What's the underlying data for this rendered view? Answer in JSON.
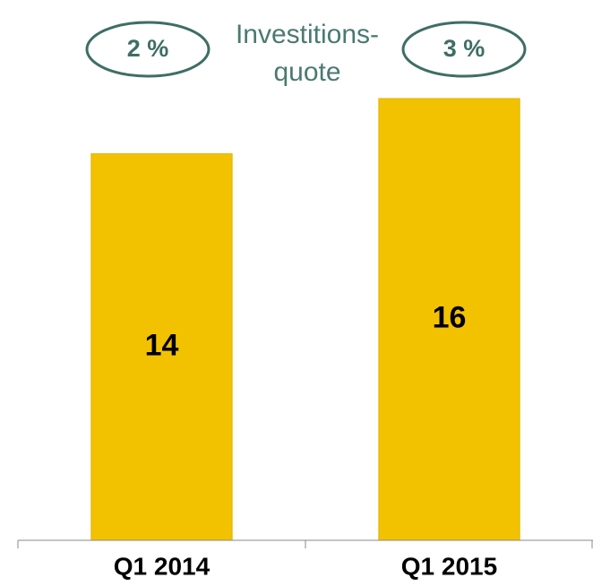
{
  "chart_data": {
    "type": "bar",
    "categories": [
      "Q1 2014",
      "Q1 2015"
    ],
    "values": [
      14,
      16
    ],
    "color": "#f2c200",
    "ylim": [
      0,
      16
    ],
    "annotation": [
      "Investitions-",
      "quote"
    ],
    "investment_ratio": {
      "values": [
        2,
        3
      ],
      "value_labels": [
        "2 %",
        "3 %"
      ],
      "color": "#3e6e64"
    }
  }
}
